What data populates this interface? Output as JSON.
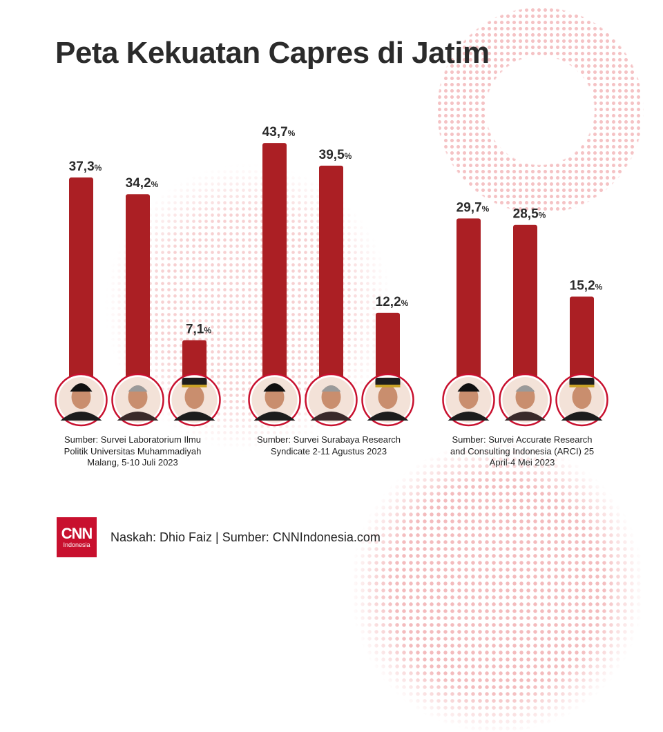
{
  "title": "Peta Kekuatan Capres di Jatim",
  "chart_data": [
    {
      "type": "bar",
      "series": [
        {
          "values": [
            37.3,
            34.2,
            7.1
          ],
          "labels": [
            "37,3",
            "34,2",
            "7,1"
          ]
        }
      ],
      "source": "Sumber: Survei Laboratorium Ilmu Politik Universitas Muhammadiyah Malang, 5-10 Juli 2023"
    },
    {
      "type": "bar",
      "series": [
        {
          "values": [
            43.7,
            39.5,
            12.2
          ],
          "labels": [
            "43,7",
            "39,5",
            "12,2"
          ]
        }
      ],
      "source": "Sumber: Survei Surabaya Research Syndicate 2-11 Agustus 2023"
    },
    {
      "type": "bar",
      "series": [
        {
          "values": [
            29.7,
            28.5,
            15.2
          ],
          "labels": [
            "29,7",
            "28,5",
            "15,2"
          ]
        }
      ],
      "source": "Sumber: Survei Accurate Research and Consulting Indonesia (ARCI) 25 April-4 Mei 2023"
    }
  ],
  "percent_sign": "%",
  "sources": {
    "s1": "Sumber: Survei Laboratorium Ilmu Politik Universitas Muhammadiyah Malang, 5-10 Juli 2023",
    "s2": "Sumber: Survei Surabaya Research Syndicate 2-11 Agustus 2023",
    "s3": "Sumber: Survei Accurate Research and Consulting Indonesia (ARCI) 25 April-4 Mei 2023"
  },
  "footer": {
    "logo_main": "CNN",
    "logo_sub": "Indonesia",
    "credit": "Naskah: Dhio Faiz | Sumber: CNNIndonesia.com"
  },
  "colors": {
    "bar": "#ab1f24",
    "ring": "#c8102e",
    "text": "#2b2b2b",
    "dots": "#e8787c"
  }
}
